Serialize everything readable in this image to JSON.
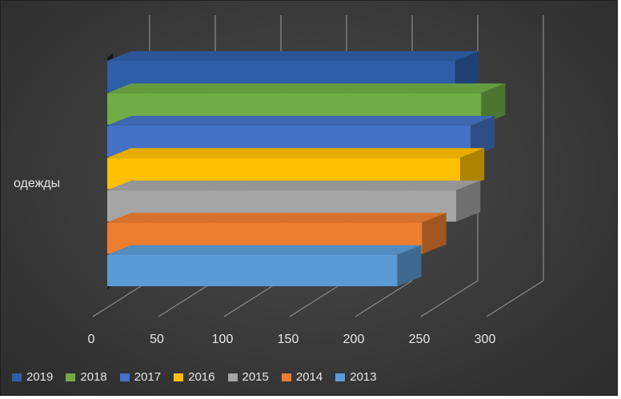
{
  "chart_data": {
    "type": "bar",
    "orientation": "horizontal",
    "style": "3d-clustered",
    "categories": [
      "одежды"
    ],
    "series": [
      {
        "name": "2019",
        "values": [
          265
        ],
        "color": "#2e5ea8"
      },
      {
        "name": "2018",
        "values": [
          285
        ],
        "color": "#70ad47"
      },
      {
        "name": "2017",
        "values": [
          277
        ],
        "color": "#4472c4"
      },
      {
        "name": "2016",
        "values": [
          269
        ],
        "color": "#ffc000"
      },
      {
        "name": "2015",
        "values": [
          266
        ],
        "color": "#a5a5a5"
      },
      {
        "name": "2014",
        "values": [
          240
        ],
        "color": "#ed7d31"
      },
      {
        "name": "2013",
        "values": [
          221
        ],
        "color": "#5b9bd5"
      }
    ],
    "x_ticks": [
      "0",
      "50",
      "100",
      "150",
      "200",
      "250",
      "300"
    ],
    "xlim": [
      0,
      300
    ],
    "grid": true,
    "legend_position": "bottom",
    "title": "",
    "xlabel": "",
    "ylabel": ""
  }
}
